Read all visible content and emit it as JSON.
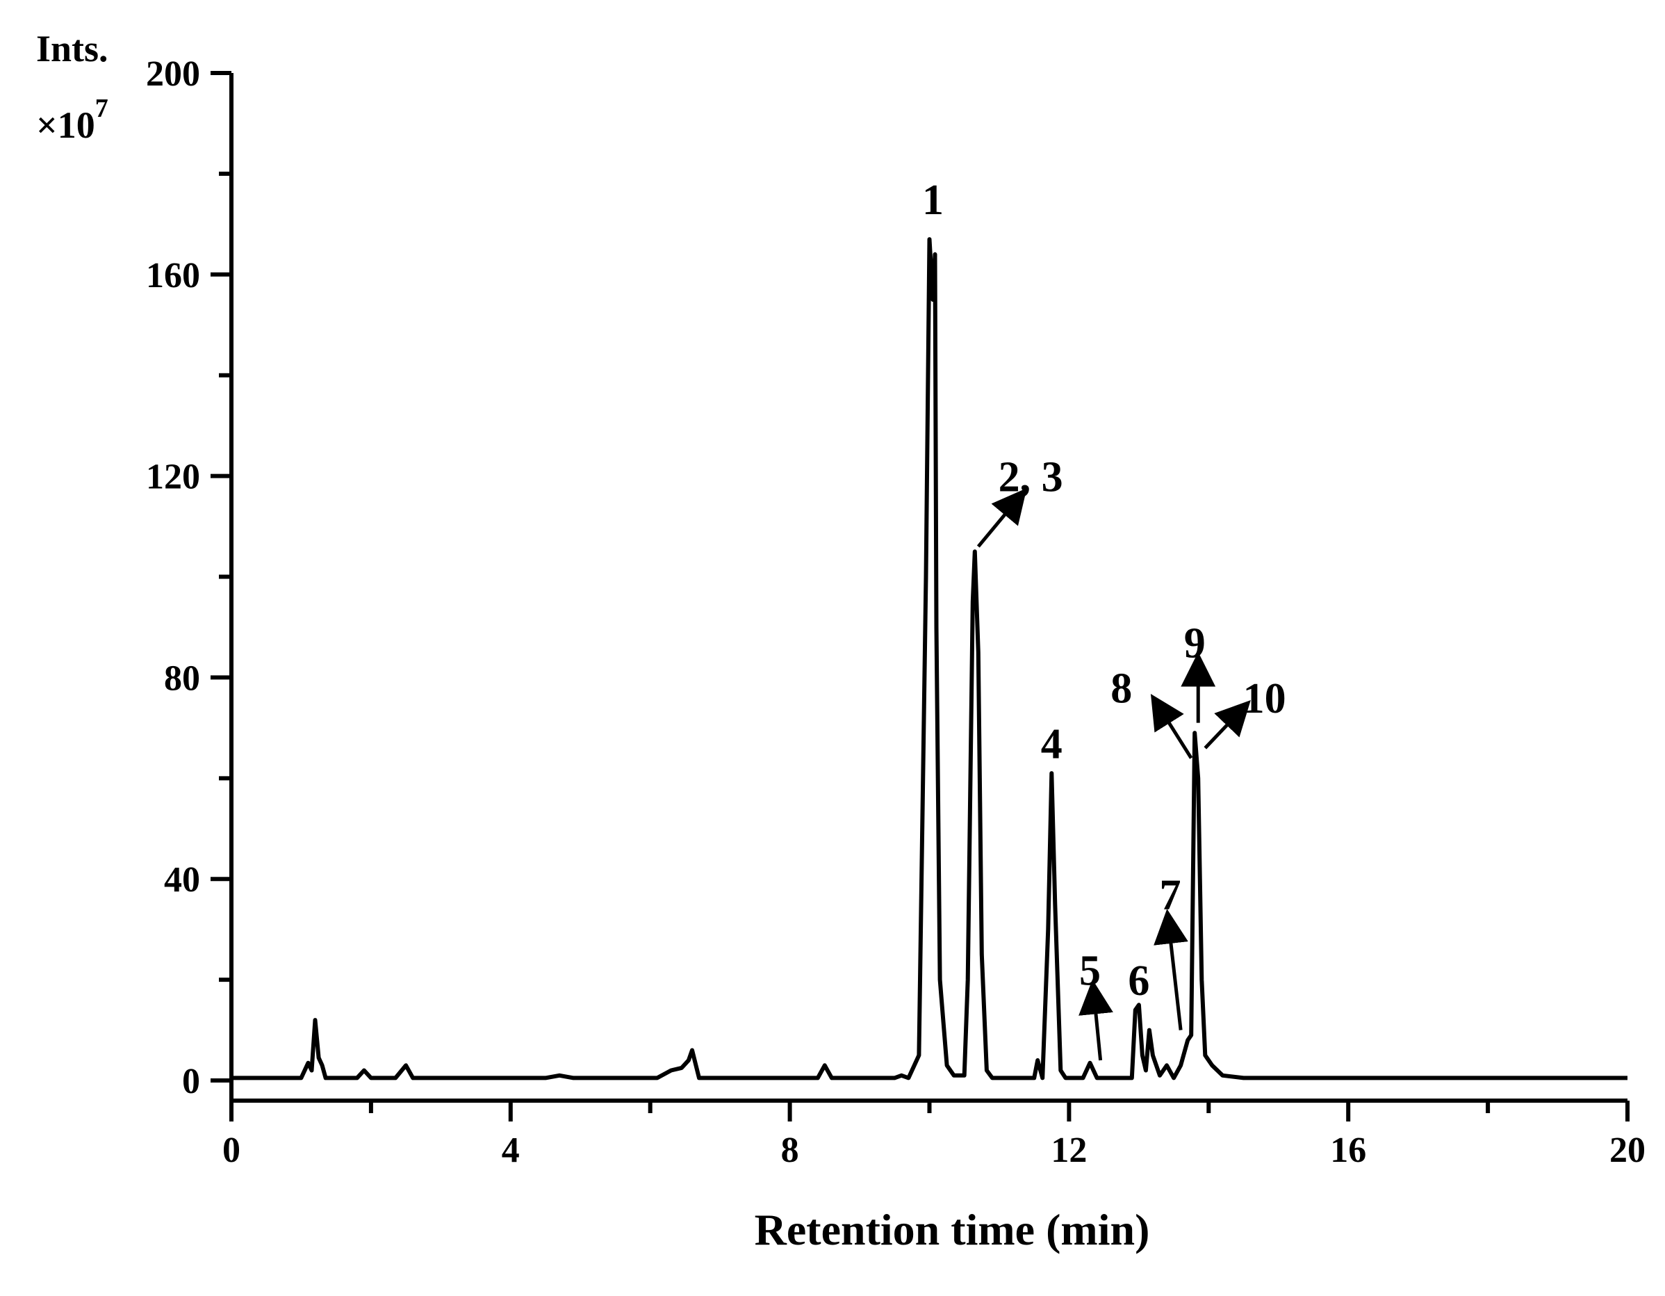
{
  "chart_data": {
    "type": "line",
    "title": "",
    "xlabel": "Retention time (min)",
    "ylabel": "Ints.",
    "y_multiplier": {
      "base": "×10",
      "exponent": "7"
    },
    "xlim": [
      0,
      20
    ],
    "ylim": [
      -4,
      200
    ],
    "x_ticks": [
      0,
      4,
      8,
      12,
      16,
      20
    ],
    "x_tick_labels": [
      "0",
      "4",
      "8",
      "12",
      "16",
      "20"
    ],
    "y_ticks": [
      0,
      40,
      80,
      120,
      160,
      200
    ],
    "y_tick_labels": [
      "0",
      "40",
      "80",
      "120",
      "160",
      "200"
    ],
    "grid": false,
    "legend": "none",
    "line_color": "#000000",
    "series": [
      {
        "x": [
          0.0,
          1.0,
          1.1,
          1.15,
          1.2,
          1.25,
          1.3,
          1.35,
          1.45,
          1.8,
          1.9,
          2.0,
          2.1,
          2.35,
          2.5,
          2.6,
          2.75,
          4.5,
          4.7,
          4.9,
          6.1,
          6.3,
          6.45,
          6.55,
          6.6,
          6.7,
          8.4,
          8.5,
          8.6,
          9.5,
          9.6,
          9.7,
          9.85,
          9.95,
          10.0,
          10.05,
          10.08,
          10.1,
          10.15,
          10.25,
          10.35,
          10.5,
          10.55,
          10.62,
          10.65,
          10.7,
          10.75,
          10.82,
          10.9,
          11.5,
          11.55,
          11.62,
          11.7,
          11.75,
          11.8,
          11.88,
          11.95,
          12.2,
          12.3,
          12.4,
          12.9,
          12.95,
          13.0,
          13.05,
          13.1,
          13.15,
          13.2,
          13.3,
          13.4,
          13.5,
          13.6,
          13.7,
          13.75,
          13.8,
          13.85,
          13.9,
          13.95,
          14.05,
          14.2,
          14.5,
          16.5,
          20.0
        ],
        "y": [
          0.5,
          0.5,
          3.5,
          2.0,
          12.0,
          4.5,
          3.0,
          0.5,
          0.5,
          0.5,
          2.0,
          0.5,
          0.5,
          0.5,
          3.0,
          0.5,
          0.5,
          0.5,
          1.0,
          0.5,
          0.5,
          2.0,
          2.5,
          4.0,
          6.0,
          0.5,
          0.5,
          3.0,
          0.5,
          0.5,
          1.0,
          0.5,
          5.0,
          100.0,
          167.0,
          155.0,
          164.0,
          90.0,
          20.0,
          3.0,
          1.0,
          1.0,
          20.0,
          95.0,
          105.0,
          85.0,
          25.0,
          2.0,
          0.5,
          0.5,
          4.0,
          0.5,
          30.0,
          61.0,
          35.0,
          2.0,
          0.5,
          0.5,
          3.5,
          0.5,
          0.5,
          14.0,
          15.0,
          5.0,
          2.0,
          10.0,
          5.0,
          1.0,
          3.0,
          0.5,
          3.0,
          8.0,
          9.0,
          69.0,
          60.0,
          20.0,
          5.0,
          3.0,
          1.0,
          0.5,
          0.5,
          0.5
        ]
      }
    ],
    "peak_labels": [
      {
        "text": "1",
        "x": 10.05,
        "y": 172,
        "arrow": null
      },
      {
        "text": "2, 3",
        "x": 11.45,
        "y": 117,
        "arrow": {
          "from_x": 10.7,
          "from_y": 106,
          "to_x": 11.3,
          "to_y": 116
        }
      },
      {
        "text": "4",
        "x": 11.75,
        "y": 64,
        "arrow": null
      },
      {
        "text": "5",
        "x": 12.3,
        "y": 19,
        "arrow": {
          "from_x": 12.45,
          "from_y": 4,
          "to_x": 12.35,
          "to_y": 18
        }
      },
      {
        "text": "6",
        "x": 13.0,
        "y": 17,
        "arrow": null
      },
      {
        "text": "7",
        "x": 13.45,
        "y": 34,
        "arrow": {
          "from_x": 13.6,
          "from_y": 10,
          "to_x": 13.42,
          "to_y": 32
        }
      },
      {
        "text": "8",
        "x": 12.75,
        "y": 75,
        "arrow": {
          "from_x": 13.75,
          "from_y": 64,
          "to_x": 13.25,
          "to_y": 75
        }
      },
      {
        "text": "9",
        "x": 13.8,
        "y": 84,
        "arrow": {
          "from_x": 13.85,
          "from_y": 71,
          "to_x": 13.85,
          "to_y": 83
        }
      },
      {
        "text": "10",
        "x": 14.8,
        "y": 73,
        "arrow": {
          "from_x": 13.95,
          "from_y": 66,
          "to_x": 14.5,
          "to_y": 74
        }
      }
    ]
  }
}
